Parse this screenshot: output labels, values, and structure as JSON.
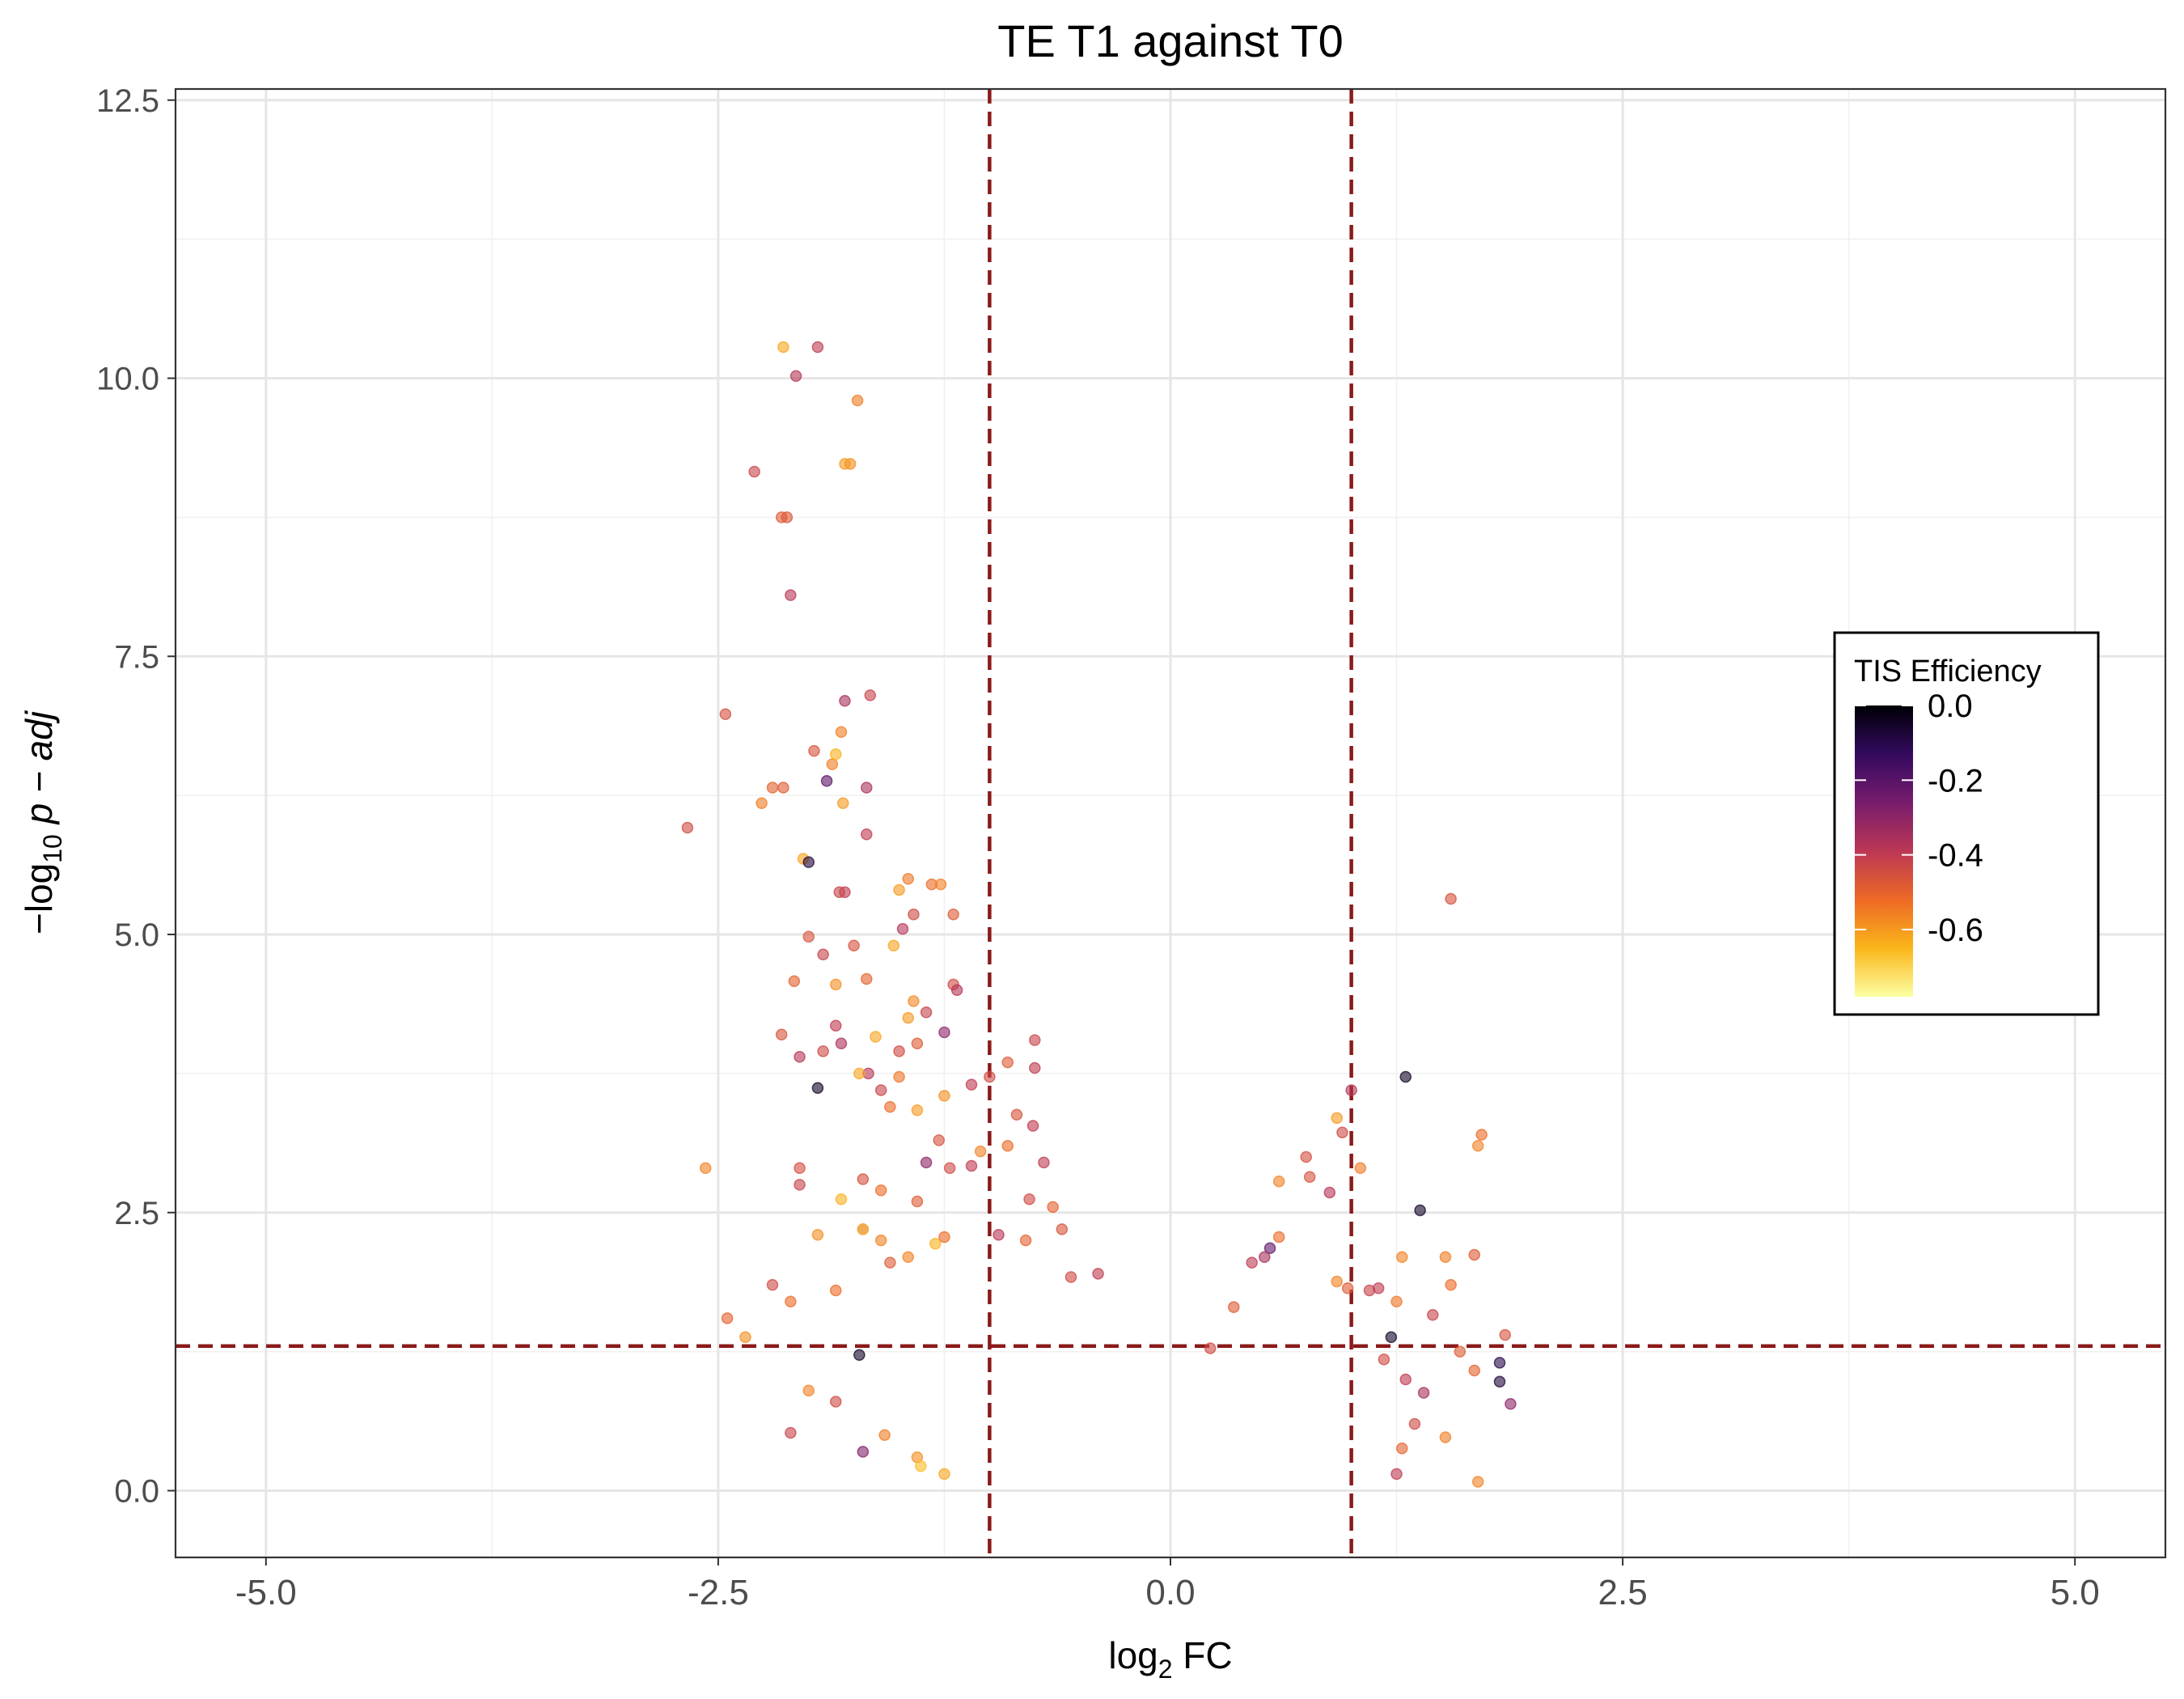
{
  "chart_data": {
    "type": "scatter",
    "title": "TE T1 against T0",
    "xlabel": {
      "prefix": "log",
      "sub": "2",
      "suffix": " FC"
    },
    "ylabel": {
      "prefix": "−log",
      "sub": "10",
      "suffix": " p − adj"
    },
    "xlim": [
      -5.5,
      5.5
    ],
    "ylim": [
      -0.6,
      12.6
    ],
    "x_ticks": [
      -5.0,
      -2.5,
      0.0,
      2.5,
      5.0
    ],
    "x_tick_labels": [
      "-5.0",
      "-2.5",
      "0.0",
      "2.5",
      "5.0"
    ],
    "y_ticks": [
      0.0,
      2.5,
      5.0,
      7.5,
      10.0,
      12.5
    ],
    "y_tick_labels": [
      "0.0",
      "2.5",
      "5.0",
      "7.5",
      "10.0",
      "12.5"
    ],
    "grid": true,
    "threshold_lines": {
      "x": [
        -1,
        1
      ],
      "y": [
        1.3
      ],
      "color": "#8b1a1a",
      "style": "dashed"
    },
    "legend": {
      "title": "TIS Efficiency",
      "placement": "right",
      "range": [
        -0.78,
        0.0
      ],
      "ticks": [
        0.0,
        -0.2,
        -0.4,
        -0.6
      ],
      "tick_labels": [
        "0.0",
        "-0.2",
        "-0.4",
        "-0.6"
      ],
      "colormap": "inferno",
      "stops": [
        "#000004",
        "#320a5e",
        "#781c6d",
        "#bc3754",
        "#ed6925",
        "#fbb61a",
        "#fcffa4"
      ]
    },
    "points": [
      [
        -2.14,
        10.28,
        -0.62
      ],
      [
        -1.95,
        10.28,
        -0.4
      ],
      [
        -2.07,
        10.02,
        -0.38
      ],
      [
        -1.73,
        9.8,
        -0.55
      ],
      [
        -1.77,
        9.23,
        -0.58
      ],
      [
        -1.8,
        9.23,
        -0.6
      ],
      [
        -2.3,
        9.16,
        -0.42
      ],
      [
        -2.15,
        8.75,
        -0.48
      ],
      [
        -2.12,
        8.75,
        -0.47
      ],
      [
        -2.1,
        8.05,
        -0.38
      ],
      [
        -1.8,
        7.1,
        -0.35
      ],
      [
        -1.66,
        7.15,
        -0.42
      ],
      [
        -2.46,
        6.98,
        -0.45
      ],
      [
        -1.87,
        6.53,
        -0.55
      ],
      [
        -1.97,
        6.65,
        -0.46
      ],
      [
        -1.82,
        6.82,
        -0.55
      ],
      [
        -1.85,
        6.62,
        -0.64
      ],
      [
        -1.9,
        6.38,
        -0.2
      ],
      [
        -2.2,
        6.32,
        -0.5
      ],
      [
        -2.14,
        6.32,
        -0.48
      ],
      [
        -2.26,
        6.18,
        -0.55
      ],
      [
        -1.81,
        6.18,
        -0.6
      ],
      [
        -1.68,
        6.32,
        -0.36
      ],
      [
        -1.68,
        5.9,
        -0.4
      ],
      [
        -2.67,
        5.96,
        -0.44
      ],
      [
        -2.03,
        5.68,
        -0.62
      ],
      [
        -2.0,
        5.65,
        -0.08
      ],
      [
        -1.8,
        5.38,
        -0.4
      ],
      [
        -1.83,
        5.38,
        -0.42
      ],
      [
        -1.5,
        5.4,
        -0.6
      ],
      [
        -1.45,
        5.5,
        -0.54
      ],
      [
        -1.32,
        5.45,
        -0.52
      ],
      [
        -1.27,
        5.45,
        -0.56
      ],
      [
        -1.2,
        5.18,
        -0.48
      ],
      [
        -1.48,
        5.05,
        -0.38
      ],
      [
        -1.53,
        4.9,
        -0.62
      ],
      [
        -1.42,
        5.18,
        -0.44
      ],
      [
        -2.0,
        4.98,
        -0.46
      ],
      [
        -1.92,
        4.82,
        -0.42
      ],
      [
        -1.75,
        4.9,
        -0.46
      ],
      [
        -1.85,
        4.55,
        -0.58
      ],
      [
        -2.08,
        4.58,
        -0.5
      ],
      [
        -1.68,
        4.6,
        -0.5
      ],
      [
        -1.42,
        4.4,
        -0.57
      ],
      [
        -1.45,
        4.25,
        -0.6
      ],
      [
        -1.2,
        4.55,
        -0.44
      ],
      [
        -1.18,
        4.5,
        -0.38
      ],
      [
        -1.35,
        4.3,
        -0.42
      ],
      [
        -1.85,
        4.18,
        -0.4
      ],
      [
        -1.82,
        4.02,
        -0.36
      ],
      [
        -1.92,
        3.95,
        -0.44
      ],
      [
        -1.63,
        4.08,
        -0.62
      ],
      [
        -1.67,
        3.75,
        -0.38
      ],
      [
        -1.5,
        3.95,
        -0.44
      ],
      [
        -1.4,
        4.02,
        -0.48
      ],
      [
        -1.25,
        4.12,
        -0.3
      ],
      [
        -2.15,
        4.1,
        -0.46
      ],
      [
        -2.05,
        3.9,
        -0.38
      ],
      [
        -1.95,
        3.62,
        -0.05
      ],
      [
        -1.72,
        3.75,
        -0.62
      ],
      [
        -1.6,
        3.6,
        -0.42
      ],
      [
        -1.5,
        3.72,
        -0.54
      ],
      [
        -1.55,
        3.45,
        -0.52
      ],
      [
        -1.4,
        3.42,
        -0.6
      ],
      [
        -1.25,
        3.55,
        -0.58
      ],
      [
        -1.1,
        3.65,
        -0.4
      ],
      [
        -1.0,
        3.72,
        -0.44
      ],
      [
        -0.75,
        4.05,
        -0.42
      ],
      [
        -0.9,
        3.85,
        -0.48
      ],
      [
        -0.75,
        3.8,
        -0.4
      ],
      [
        -0.76,
        3.28,
        -0.4
      ],
      [
        -0.85,
        3.38,
        -0.46
      ],
      [
        -0.9,
        3.1,
        -0.52
      ],
      [
        -1.05,
        3.05,
        -0.56
      ],
      [
        -1.1,
        2.92,
        -0.4
      ],
      [
        -1.28,
        3.15,
        -0.46
      ],
      [
        -1.22,
        2.9,
        -0.44
      ],
      [
        -1.35,
        2.95,
        -0.3
      ],
      [
        -1.4,
        2.6,
        -0.48
      ],
      [
        -1.6,
        2.7,
        -0.52
      ],
      [
        -1.7,
        2.8,
        -0.45
      ],
      [
        -1.82,
        2.62,
        -0.64
      ],
      [
        -2.05,
        2.9,
        -0.45
      ],
      [
        -2.05,
        2.75,
        -0.42
      ],
      [
        -2.57,
        2.9,
        -0.56
      ],
      [
        -0.7,
        2.95,
        -0.4
      ],
      [
        -0.78,
        2.62,
        -0.44
      ],
      [
        -0.65,
        2.55,
        -0.5
      ],
      [
        -0.6,
        2.35,
        -0.46
      ],
      [
        -0.8,
        2.25,
        -0.5
      ],
      [
        -0.95,
        2.3,
        -0.38
      ],
      [
        -1.25,
        2.28,
        -0.52
      ],
      [
        -1.3,
        2.22,
        -0.64
      ],
      [
        -1.45,
        2.1,
        -0.56
      ],
      [
        -1.55,
        2.05,
        -0.48
      ],
      [
        -1.6,
        2.25,
        -0.56
      ],
      [
        -1.7,
        2.35,
        -0.4
      ],
      [
        -1.95,
        2.3,
        -0.58
      ],
      [
        -1.7,
        2.35,
        -0.67
      ],
      [
        -1.85,
        1.8,
        -0.52
      ],
      [
        -2.2,
        1.85,
        -0.44
      ],
      [
        -2.1,
        1.7,
        -0.52
      ],
      [
        -2.45,
        1.55,
        -0.5
      ],
      [
        -2.35,
        1.38,
        -0.58
      ],
      [
        -2.0,
        0.9,
        -0.56
      ],
      [
        -2.1,
        0.52,
        -0.42
      ],
      [
        -1.85,
        0.8,
        -0.44
      ],
      [
        -1.72,
        1.22,
        -0.05
      ],
      [
        -1.7,
        0.35,
        -0.28
      ],
      [
        -1.58,
        0.5,
        -0.55
      ],
      [
        -1.4,
        0.3,
        -0.58
      ],
      [
        -1.38,
        0.22,
        -0.66
      ],
      [
        -1.25,
        0.15,
        -0.62
      ],
      [
        -0.55,
        1.92,
        -0.44
      ],
      [
        -0.4,
        1.95,
        -0.4
      ],
      [
        1.55,
        5.32,
        -0.46
      ],
      [
        1.3,
        3.72,
        -0.05
      ],
      [
        1.0,
        3.6,
        -0.38
      ],
      [
        0.95,
        3.22,
        -0.44
      ],
      [
        0.92,
        3.35,
        -0.6
      ],
      [
        1.05,
        2.9,
        -0.55
      ],
      [
        0.88,
        2.68,
        -0.38
      ],
      [
        0.75,
        3.0,
        -0.45
      ],
      [
        0.77,
        2.82,
        -0.46
      ],
      [
        0.6,
        2.78,
        -0.56
      ],
      [
        1.38,
        2.52,
        -0.05
      ],
      [
        1.72,
        3.2,
        -0.52
      ],
      [
        1.7,
        3.1,
        -0.56
      ],
      [
        1.52,
        2.1,
        -0.55
      ],
      [
        1.68,
        2.12,
        -0.48
      ],
      [
        1.55,
        1.85,
        -0.52
      ],
      [
        1.28,
        2.1,
        -0.56
      ],
      [
        1.25,
        1.7,
        -0.54
      ],
      [
        1.1,
        1.8,
        -0.42
      ],
      [
        1.15,
        1.82,
        -0.4
      ],
      [
        0.98,
        1.82,
        -0.48
      ],
      [
        0.92,
        1.88,
        -0.56
      ],
      [
        1.45,
        1.58,
        -0.42
      ],
      [
        1.85,
        1.4,
        -0.46
      ],
      [
        1.82,
        1.15,
        -0.1
      ],
      [
        1.82,
        0.98,
        -0.08
      ],
      [
        1.88,
        0.78,
        -0.3
      ],
      [
        1.68,
        1.08,
        -0.5
      ],
      [
        1.6,
        1.25,
        -0.48
      ],
      [
        1.7,
        0.08,
        -0.56
      ],
      [
        1.52,
        0.48,
        -0.55
      ],
      [
        1.4,
        0.88,
        -0.35
      ],
      [
        1.35,
        0.6,
        -0.44
      ],
      [
        1.28,
        0.38,
        -0.5
      ],
      [
        1.25,
        0.15,
        -0.4
      ],
      [
        1.3,
        1.0,
        -0.4
      ],
      [
        1.22,
        1.38,
        -0.05
      ],
      [
        1.18,
        1.18,
        -0.44
      ],
      [
        0.6,
        2.28,
        -0.52
      ],
      [
        0.55,
        2.18,
        -0.22
      ],
      [
        0.52,
        2.1,
        -0.35
      ],
      [
        0.45,
        2.05,
        -0.4
      ],
      [
        0.35,
        1.65,
        -0.48
      ],
      [
        0.22,
        1.28,
        -0.44
      ]
    ]
  }
}
